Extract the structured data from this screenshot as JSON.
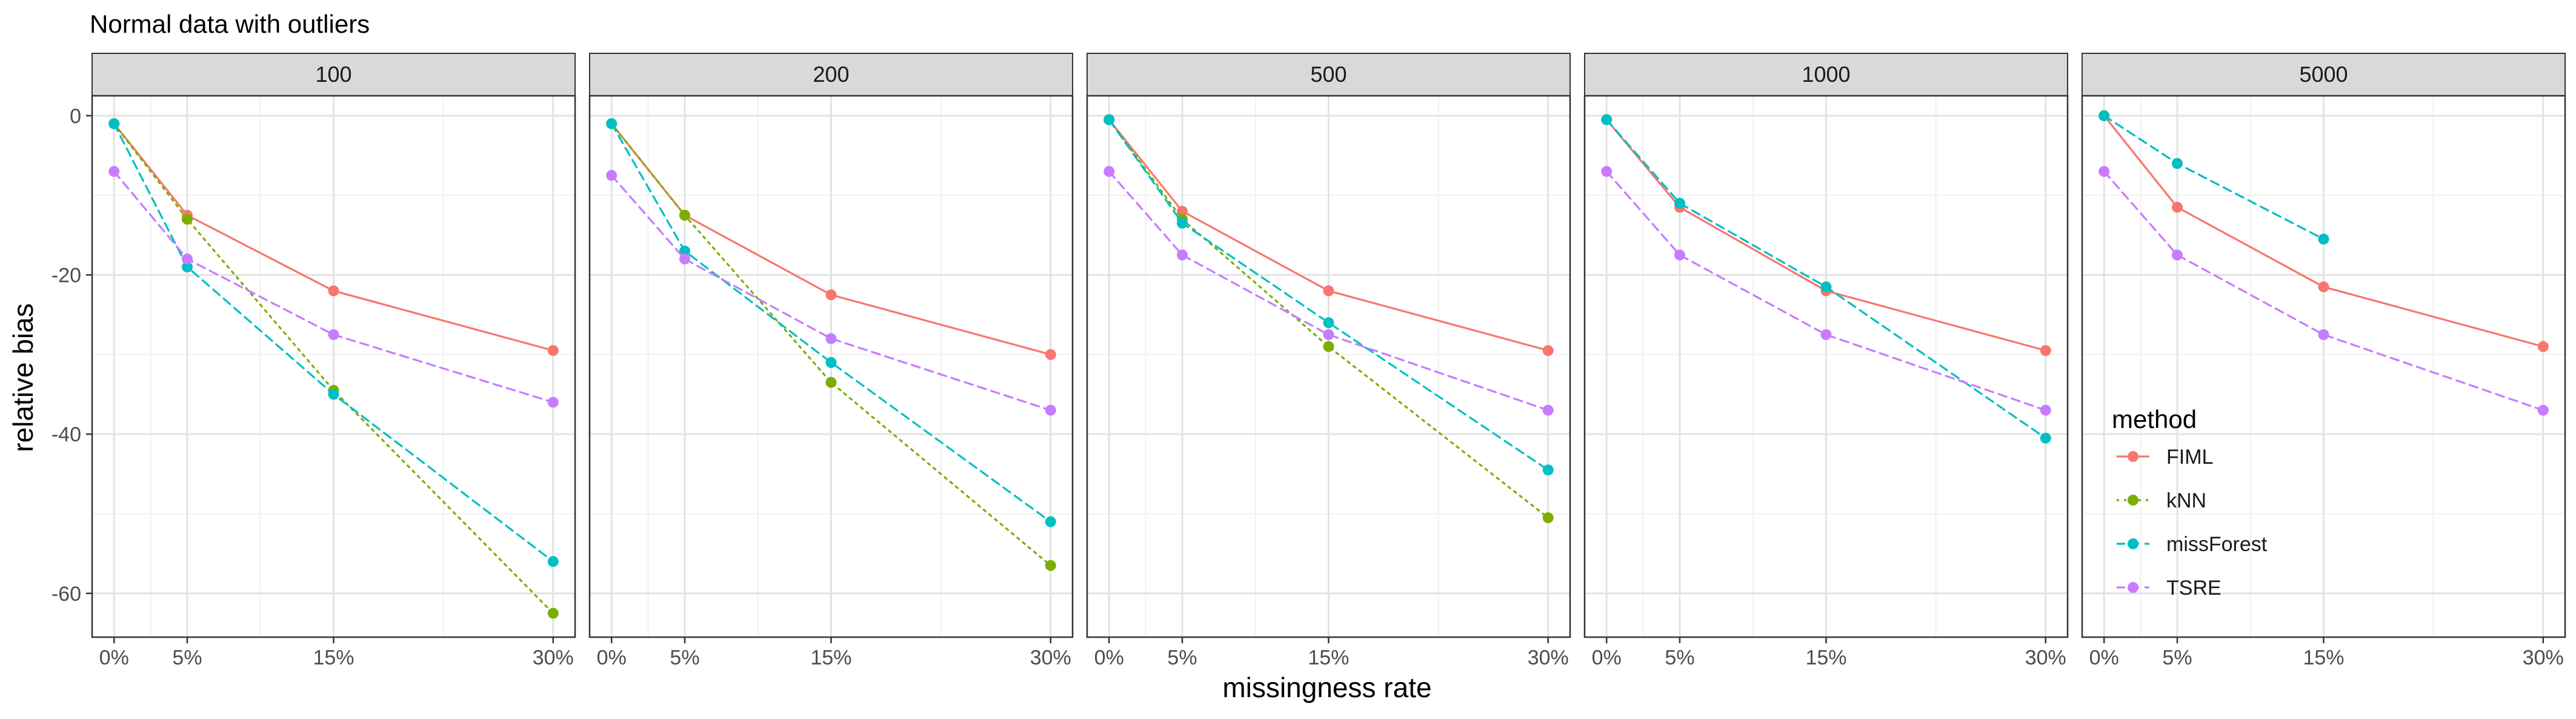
{
  "chart_data": {
    "type": "line",
    "title": "Normal data with outliers",
    "xlabel": "missingness rate",
    "ylabel": "relative bias",
    "x_ticks": [
      "0%",
      "5%",
      "15%",
      "30%"
    ],
    "x_values": [
      0,
      5,
      15,
      30
    ],
    "xlim": [
      -1.5,
      31.5
    ],
    "ylim": [
      -65.5,
      2.5
    ],
    "y_ticks": [
      0,
      -20,
      -40,
      -60
    ],
    "y_tick_labels": [
      "0",
      "-20",
      "-40",
      "-60"
    ],
    "grid": true,
    "legend": {
      "title": "method",
      "placement": "inside-right",
      "entries": [
        "FIML",
        "kNN",
        "missForest",
        "TSRE"
      ]
    },
    "series_styles": [
      {
        "name": "FIML",
        "color": "#F8766D",
        "dash": "solid"
      },
      {
        "name": "kNN",
        "color": "#7CAE00",
        "dash": "dotted"
      },
      {
        "name": "missForest",
        "color": "#00BFC4",
        "dash": "dashed"
      },
      {
        "name": "TSRE",
        "color": "#C77CFF",
        "dash": "dashed"
      }
    ],
    "panels": [
      {
        "strip": "100",
        "series": [
          {
            "name": "FIML",
            "values": [
              -1,
              -12.5,
              -22,
              -29.5
            ]
          },
          {
            "name": "kNN",
            "values": [
              -1,
              -13,
              -34.5,
              -62.5
            ]
          },
          {
            "name": "missForest",
            "values": [
              -1,
              -19,
              -35,
              -56
            ]
          },
          {
            "name": "TSRE",
            "values": [
              -7,
              -18,
              -27.5,
              -36
            ]
          }
        ]
      },
      {
        "strip": "200",
        "series": [
          {
            "name": "FIML",
            "values": [
              -1,
              -12.5,
              -22.5,
              -30
            ]
          },
          {
            "name": "kNN",
            "values": [
              -1,
              -12.5,
              -33.5,
              -56.5
            ]
          },
          {
            "name": "missForest",
            "values": [
              -1,
              -17,
              -31,
              -51
            ]
          },
          {
            "name": "TSRE",
            "values": [
              -7.5,
              -18,
              -28,
              -37
            ]
          }
        ]
      },
      {
        "strip": "500",
        "series": [
          {
            "name": "FIML",
            "values": [
              -0.5,
              -12,
              -22,
              -29.5
            ]
          },
          {
            "name": "kNN",
            "values": [
              -0.5,
              -13,
              -29,
              -50.5
            ]
          },
          {
            "name": "missForest",
            "values": [
              -0.5,
              -13.5,
              -26,
              -44.5
            ]
          },
          {
            "name": "TSRE",
            "values": [
              -7,
              -17.5,
              -27.5,
              -37
            ]
          }
        ]
      },
      {
        "strip": "1000",
        "series": [
          {
            "name": "FIML",
            "values": [
              -0.5,
              -11.5,
              -22,
              -29.5
            ]
          },
          {
            "name": "kNN",
            "values": [
              -0.5,
              null,
              null,
              null
            ]
          },
          {
            "name": "missForest",
            "values": [
              -0.5,
              -11,
              -21.5,
              -40.5
            ]
          },
          {
            "name": "TSRE",
            "values": [
              -7,
              -17.5,
              -27.5,
              -37
            ]
          }
        ]
      },
      {
        "strip": "5000",
        "series": [
          {
            "name": "FIML",
            "values": [
              0,
              -11.5,
              -21.5,
              -29
            ]
          },
          {
            "name": "kNN",
            "values": [
              0,
              null,
              null,
              null
            ]
          },
          {
            "name": "missForest",
            "values": [
              0,
              -6,
              -15.5,
              null
            ]
          },
          {
            "name": "TSRE",
            "values": [
              -7,
              -17.5,
              -27.5,
              -37
            ]
          }
        ]
      }
    ]
  }
}
